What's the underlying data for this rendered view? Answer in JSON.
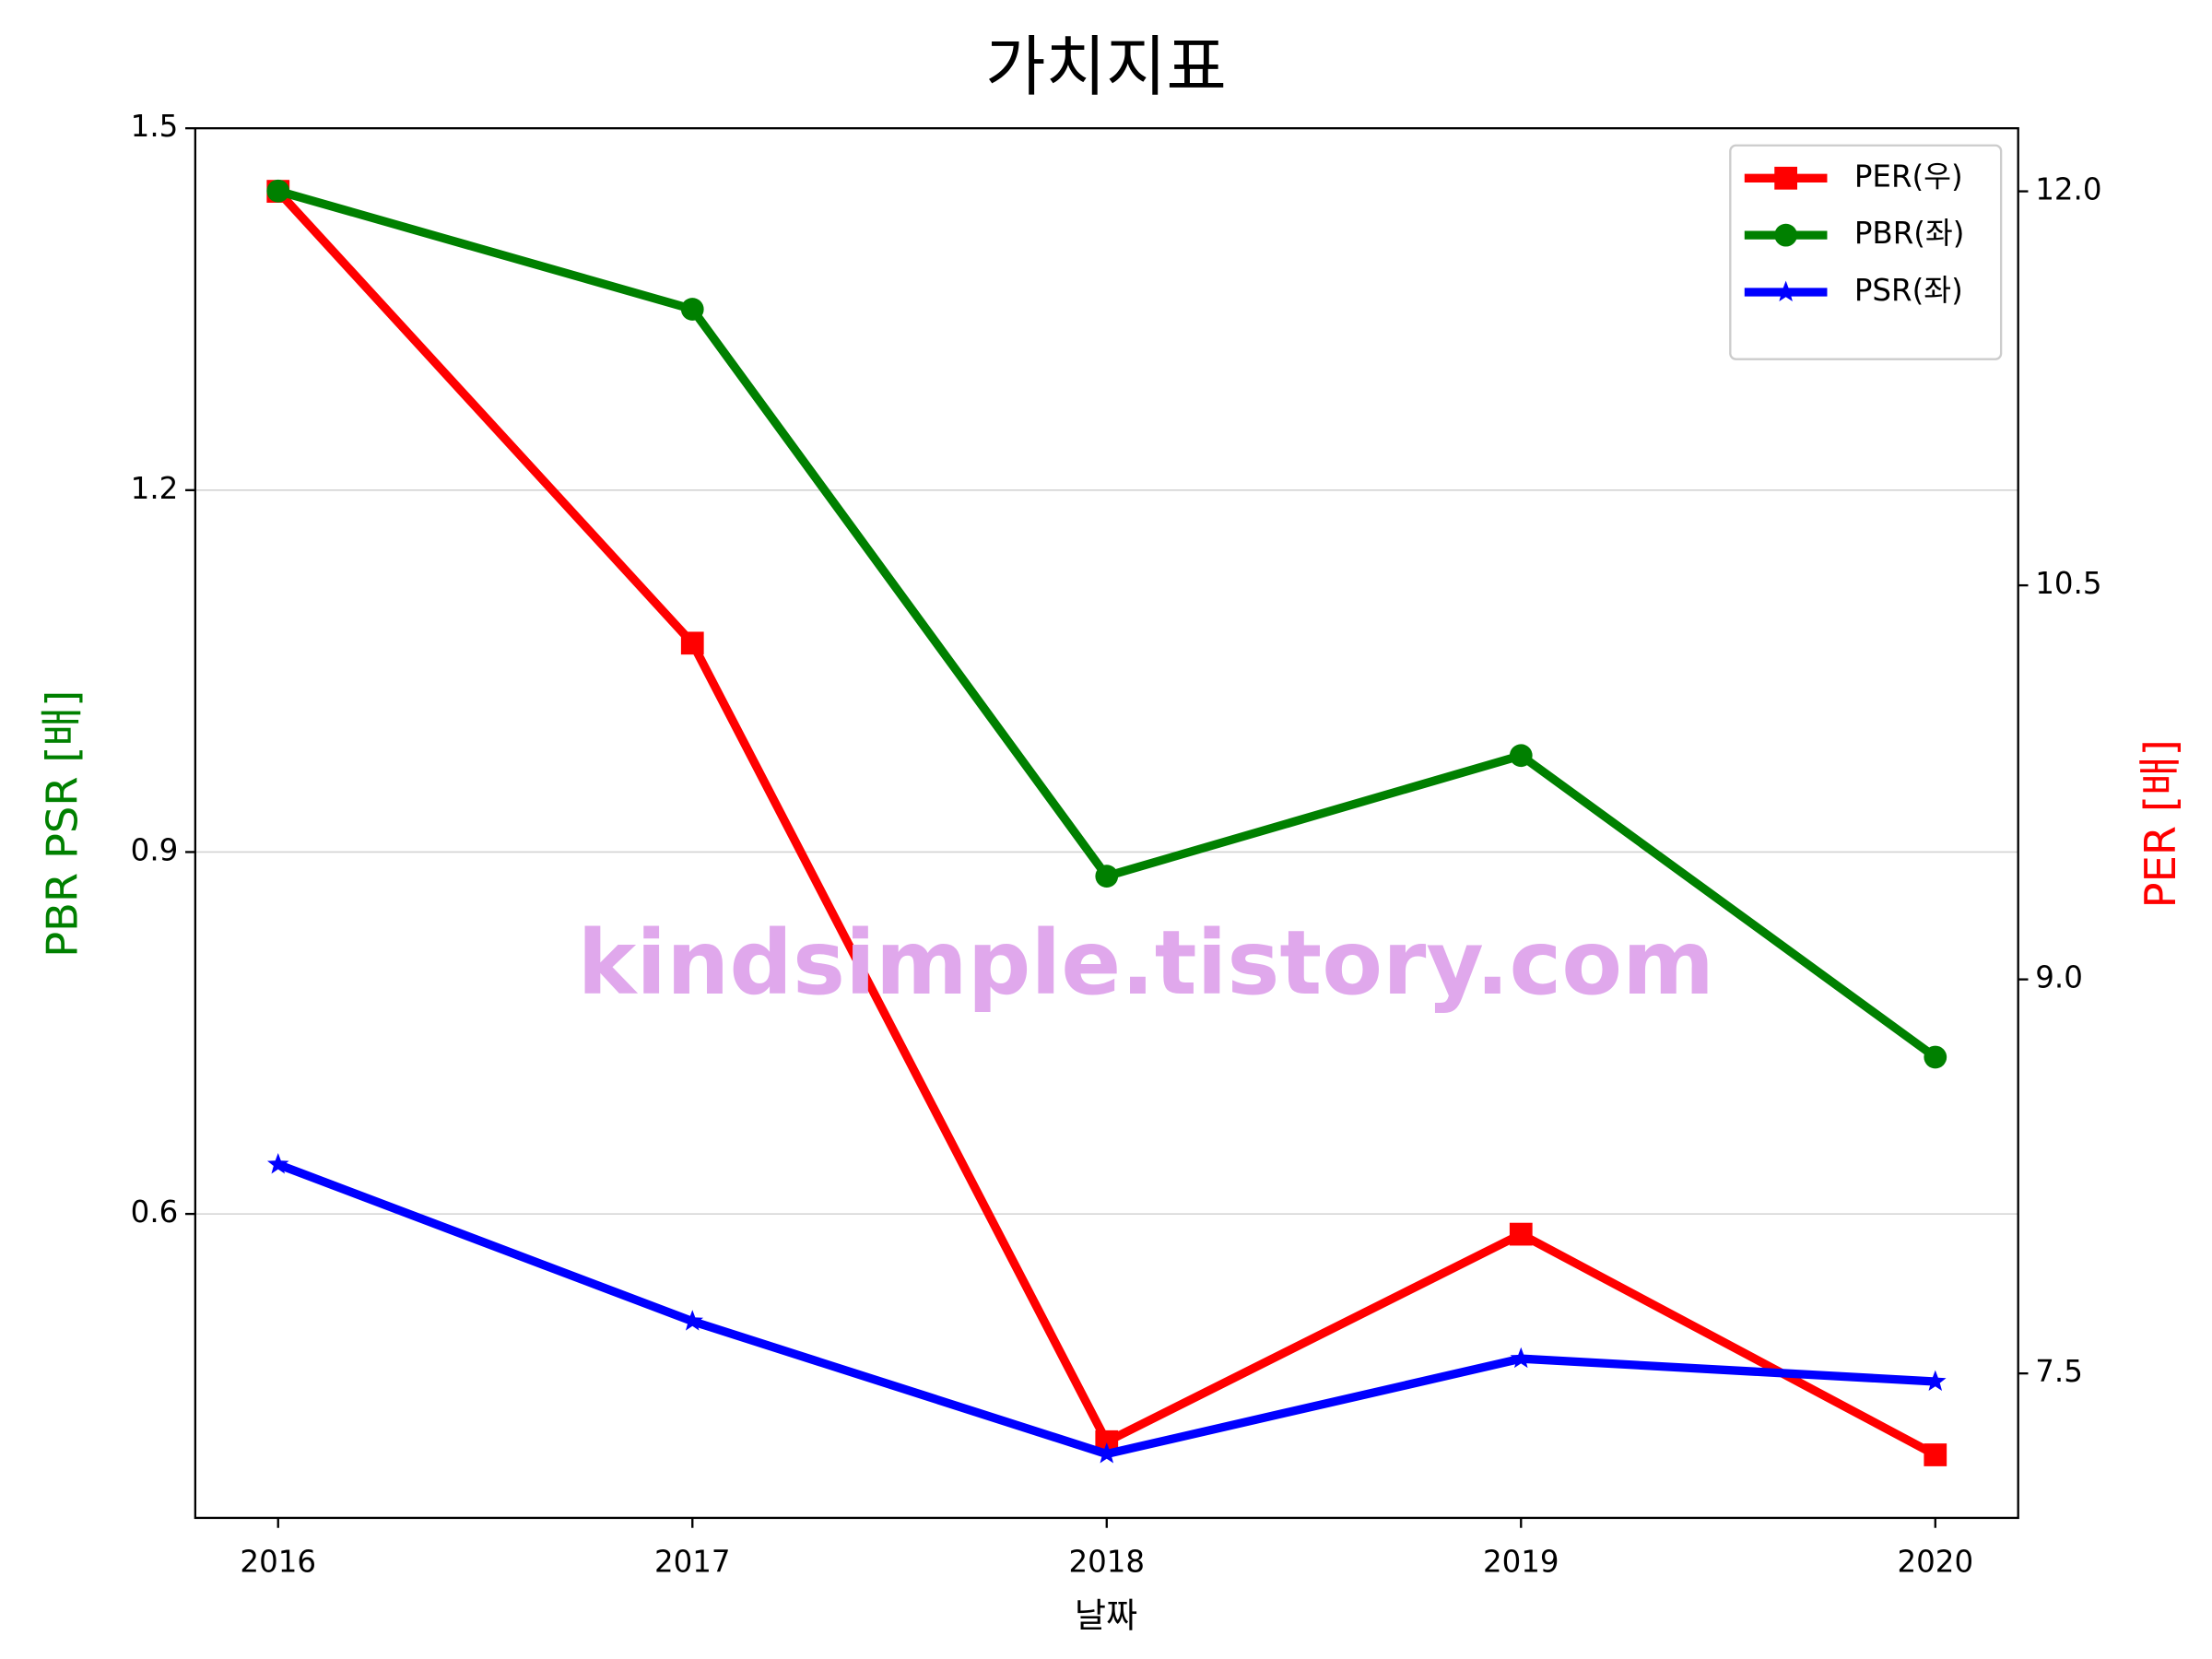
{
  "chart_data": {
    "type": "line",
    "title": "가치지표",
    "x_label": "날짜",
    "y_label": "PBR PSR [배]",
    "y2_label": "PER [배]",
    "y_label_color": "#008000",
    "y2_label_color": "#ff0000",
    "annotation": "kindsimple.tistory.com",
    "annotation_color": "#e0a8ec",
    "x": [
      2016,
      2017,
      2018,
      2019,
      2020
    ],
    "xlim": [
      2015.8,
      2020.2
    ],
    "xticks": [
      2016,
      2017,
      2018,
      2019,
      2020
    ],
    "ylim": [
      0.348,
      1.5
    ],
    "yticks": [
      0.6,
      0.9,
      1.2,
      1.5
    ],
    "y2lim": [
      6.95,
      12.24
    ],
    "y2ticks": [
      {
        "value": 7.5,
        "label": "7.5"
      },
      {
        "value": 9,
        "label": "9.0"
      },
      {
        "value": 10.5,
        "label": "10.5"
      },
      {
        "value": 12,
        "label": "12.0"
      }
    ],
    "grid": true,
    "legend": "upper right",
    "series": [
      {
        "name": "PER(우)",
        "color": "#ff0000",
        "marker": "square",
        "axis": "y2",
        "values": [
          12.0,
          10.28,
          7.24,
          8.03,
          7.19
        ]
      },
      {
        "name": "PBR(좌)",
        "color": "#008000",
        "marker": "circle",
        "values": [
          1.448,
          1.35,
          0.88,
          0.98,
          0.73
        ]
      },
      {
        "name": "PSR(좌)",
        "color": "#0000ff",
        "marker": "star",
        "values": [
          0.641,
          0.511,
          0.401,
          0.48,
          0.461
        ]
      }
    ]
  }
}
